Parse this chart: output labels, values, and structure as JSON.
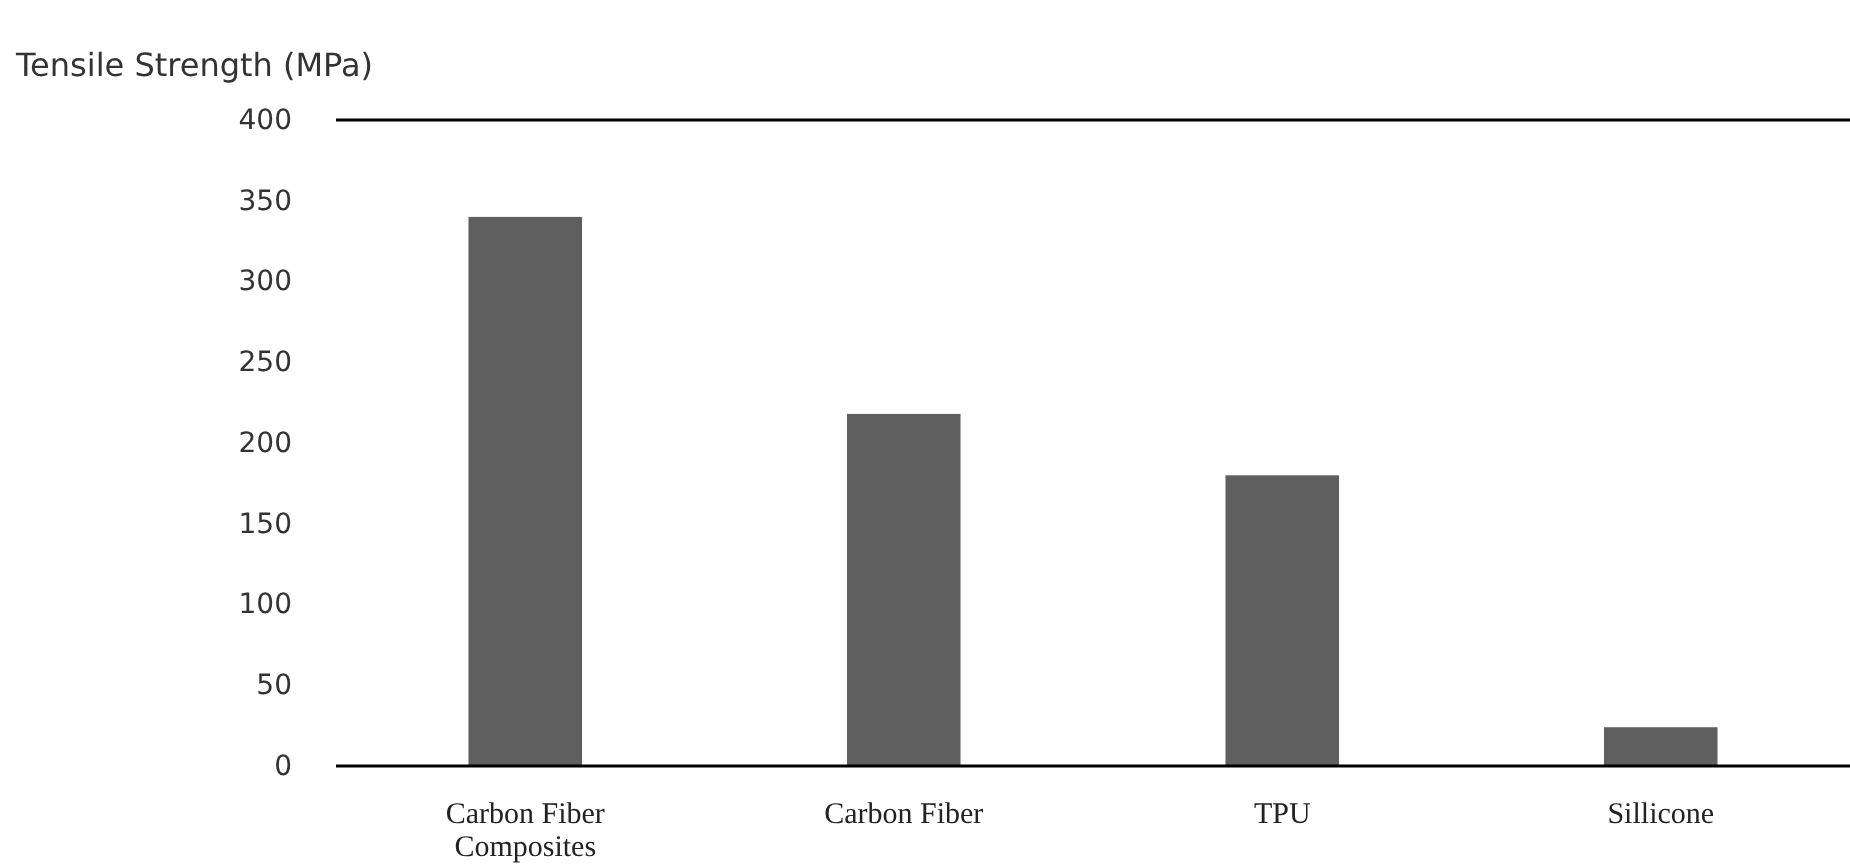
{
  "chart_data": {
    "type": "bar",
    "title": "Tensile Strength (MPa)",
    "categories": [
      "Carbon Fiber Composites",
      "Carbon Fiber",
      "TPU",
      "Sillicone"
    ],
    "values": [
      340,
      218,
      180,
      24
    ],
    "color": "#5f5f5f",
    "ylim": [
      0,
      400
    ],
    "yticks": [
      0,
      50,
      100,
      150,
      200,
      250,
      300,
      350,
      400
    ],
    "grid": false,
    "ref_lines": [
      {
        "axis": "y",
        "value": 400,
        "label": null,
        "color": "#000000"
      }
    ]
  }
}
